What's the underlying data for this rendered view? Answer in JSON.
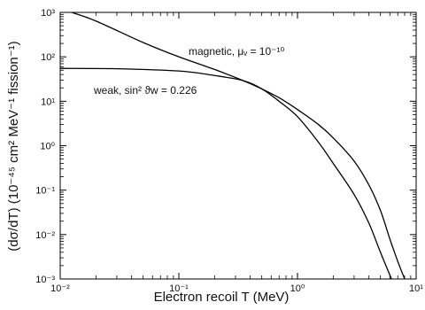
{
  "chart_data": {
    "type": "line",
    "x_scale": "log",
    "y_scale": "log",
    "xlim": [
      0.01,
      10
    ],
    "ylim": [
      0.001,
      1000
    ],
    "xlabel": "Electron recoil T (MeV)",
    "ylabel": "(dσ/dT) (10⁻⁴⁵ cm² MeV⁻¹ fission⁻¹)",
    "grid": false,
    "x_ticks": [
      {
        "value": 0.01,
        "label": "10⁻²"
      },
      {
        "value": 0.1,
        "label": "10⁻¹"
      },
      {
        "value": 1,
        "label": "10⁰"
      },
      {
        "value": 10,
        "label": "10¹"
      }
    ],
    "y_ticks": [
      {
        "value": 0.001,
        "label": "10⁻³"
      },
      {
        "value": 0.01,
        "label": "10⁻²"
      },
      {
        "value": 0.1,
        "label": "10⁻¹"
      },
      {
        "value": 1,
        "label": "10⁰"
      },
      {
        "value": 10,
        "label": "10¹"
      },
      {
        "value": 100,
        "label": "10²"
      },
      {
        "value": 1000,
        "label": "10³"
      }
    ],
    "annotations": [
      {
        "text": "magnetic, μᵥ = 10⁻¹⁰",
        "series": 0
      },
      {
        "text": "weak, sin² ϑw = 0.226",
        "series": 1
      }
    ],
    "series": [
      {
        "x": [
          0.0125,
          0.02,
          0.05,
          0.1,
          0.2,
          0.35,
          0.5,
          0.7,
          1.0,
          1.5,
          2.0,
          3.0,
          4.0,
          5.0,
          6.0,
          7.0,
          8.0
        ],
        "y": [
          1000,
          640,
          210,
          100,
          52,
          29,
          19,
          12,
          6.5,
          3.0,
          1.5,
          0.45,
          0.13,
          0.035,
          0.008,
          0.0025,
          0.001
        ]
      },
      {
        "x": [
          0.01,
          0.03,
          0.1,
          0.2,
          0.35,
          0.5,
          0.7,
          1.0,
          1.5,
          2.0,
          3.0,
          4.0,
          5.0,
          6.2
        ],
        "y": [
          55,
          54,
          48,
          38,
          29,
          19,
          10,
          4.5,
          1.2,
          0.4,
          0.08,
          0.018,
          0.004,
          0.001
        ]
      }
    ]
  }
}
